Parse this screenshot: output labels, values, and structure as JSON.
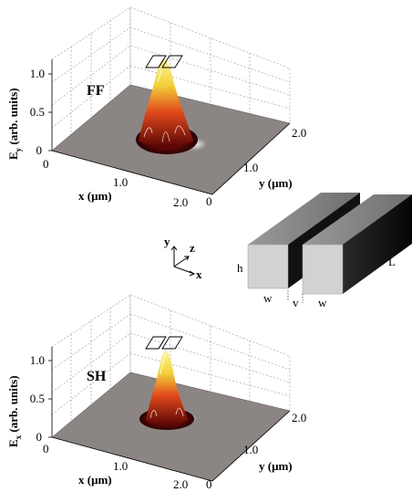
{
  "panels": {
    "top": {
      "label": "FF",
      "z_axis_label": "E",
      "z_axis_sub": "y",
      "z_axis_suffix": " (arb. units)",
      "z_ticks": [
        "0",
        "0.5",
        "1.0"
      ],
      "x_axis_label": "x (μm)",
      "x_ticks": [
        "0",
        "1.0",
        "2.0"
      ],
      "y_axis_label": "y (μm)",
      "y_ticks": [
        "0",
        "1.0",
        "2.0"
      ]
    },
    "bottom": {
      "label": "SH",
      "z_axis_label": "E",
      "z_axis_sub": "x",
      "z_axis_suffix": " (arb. units)",
      "z_ticks": [
        "0",
        "0.5",
        "1.0"
      ],
      "x_axis_label": "x (μm)",
      "x_ticks": [
        "0",
        "1.0",
        "2.0"
      ],
      "y_axis_label": "y (μm)",
      "y_ticks": [
        "0",
        "1.0",
        "2.0"
      ]
    }
  },
  "axes_triad": {
    "y": "y",
    "z": "z",
    "x": "x"
  },
  "waveguide": {
    "h": "h",
    "w_left": "w",
    "v": "v",
    "w_right": "w",
    "L": "L"
  },
  "colors": {
    "surface": "#8a8482",
    "peak_core": "#f6f070",
    "peak_mid": "#e23a1a",
    "peak_base": "#6a0606"
  }
}
